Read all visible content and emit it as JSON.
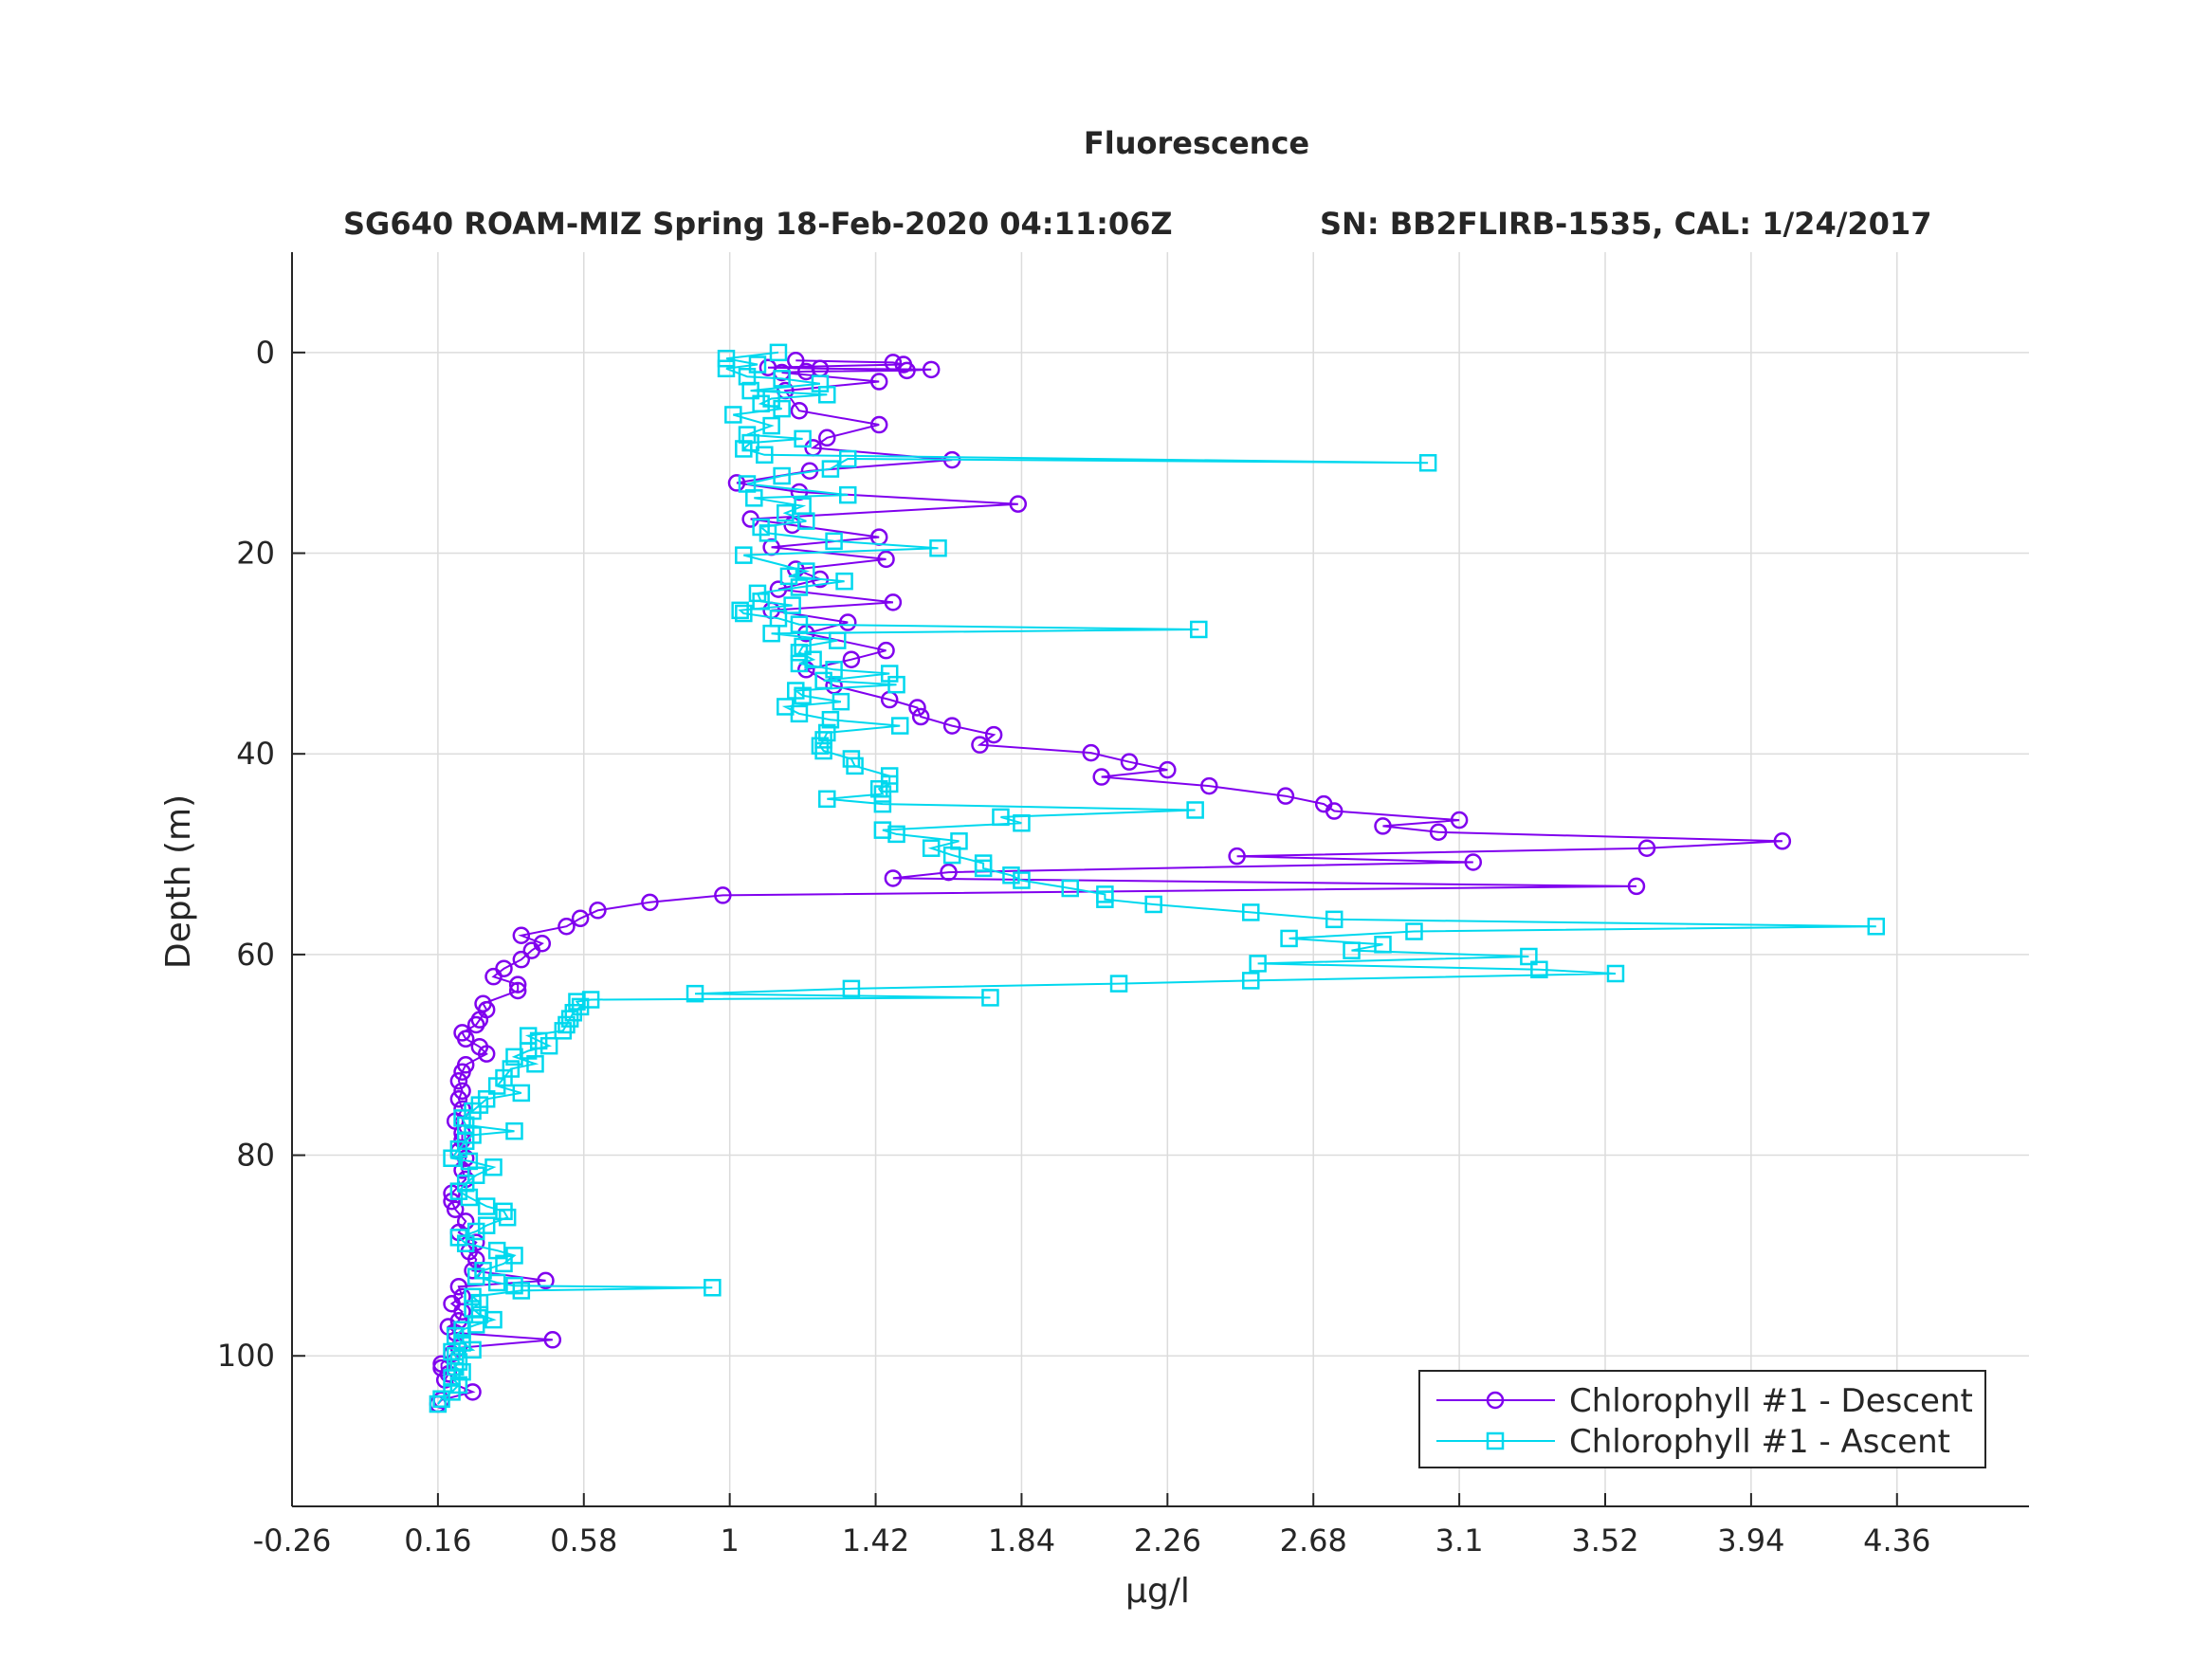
{
  "chart_data": {
    "type": "line",
    "title": "Fluorescence",
    "subtitle_left": "SG640 ROAM-MIZ Spring 18-Feb-2020 04:11:06Z",
    "subtitle_right": "SN: BB2FLIRB-1535, CAL: 1/24/2017",
    "xlabel": "μg/l",
    "ylabel": "Depth (m)",
    "xlim": [
      -0.26,
      4.74
    ],
    "ylim": [
      115,
      -10
    ],
    "y_reversed": true,
    "grid": true,
    "legend_position": "bottom-right",
    "xticks": [
      -0.26,
      0.16,
      0.58,
      1,
      1.42,
      1.84,
      2.26,
      2.68,
      3.1,
      3.52,
      3.94,
      4.36
    ],
    "xtick_labels": [
      "-0.26",
      "0.16",
      "0.58",
      "1",
      "1.42",
      "1.84",
      "2.26",
      "2.68",
      "3.1",
      "3.52",
      "3.94",
      "4.36"
    ],
    "yticks": [
      0,
      20,
      40,
      60,
      80,
      100
    ],
    "ytick_labels": [
      "0",
      "20",
      "40",
      "60",
      "80",
      "100"
    ],
    "series": [
      {
        "name": "Chlorophyll #1 - Descent",
        "color": "#8000ee",
        "marker": "circle",
        "points": [
          [
            1.19,
            0.8
          ],
          [
            1.47,
            1.0
          ],
          [
            1.5,
            1.2
          ],
          [
            1.11,
            1.5
          ],
          [
            1.26,
            1.6
          ],
          [
            1.58,
            1.7
          ],
          [
            1.51,
            1.8
          ],
          [
            1.22,
            1.9
          ],
          [
            1.15,
            2.0
          ],
          [
            1.43,
            2.9
          ],
          [
            1.16,
            3.8
          ],
          [
            1.2,
            5.8
          ],
          [
            1.43,
            7.2
          ],
          [
            1.28,
            8.5
          ],
          [
            1.24,
            9.5
          ],
          [
            1.64,
            10.7
          ],
          [
            1.23,
            11.8
          ],
          [
            1.02,
            13.0
          ],
          [
            1.2,
            13.9
          ],
          [
            1.83,
            15.1
          ],
          [
            1.06,
            16.6
          ],
          [
            1.18,
            17.2
          ],
          [
            1.43,
            18.4
          ],
          [
            1.12,
            19.4
          ],
          [
            1.45,
            20.6
          ],
          [
            1.19,
            21.6
          ],
          [
            1.26,
            22.6
          ],
          [
            1.14,
            23.6
          ],
          [
            1.47,
            24.9
          ],
          [
            1.12,
            25.7
          ],
          [
            1.34,
            26.9
          ],
          [
            1.22,
            28.0
          ],
          [
            1.45,
            29.7
          ],
          [
            1.35,
            30.6
          ],
          [
            1.22,
            31.6
          ],
          [
            1.3,
            33.2
          ],
          [
            1.46,
            34.6
          ],
          [
            1.54,
            35.4
          ],
          [
            1.55,
            36.3
          ],
          [
            1.64,
            37.2
          ],
          [
            1.76,
            38.1
          ],
          [
            1.72,
            39.1
          ],
          [
            2.04,
            39.9
          ],
          [
            2.15,
            40.8
          ],
          [
            2.26,
            41.6
          ],
          [
            2.07,
            42.3
          ],
          [
            2.38,
            43.2
          ],
          [
            2.6,
            44.2
          ],
          [
            2.71,
            45.0
          ],
          [
            2.74,
            45.7
          ],
          [
            3.1,
            46.6
          ],
          [
            2.88,
            47.2
          ],
          [
            3.04,
            47.8
          ],
          [
            4.03,
            48.7
          ],
          [
            3.64,
            49.4
          ],
          [
            2.46,
            50.2
          ],
          [
            3.14,
            50.8
          ],
          [
            1.63,
            51.8
          ],
          [
            1.47,
            52.4
          ],
          [
            3.61,
            53.2
          ],
          [
            0.98,
            54.1
          ],
          [
            0.77,
            54.8
          ],
          [
            0.62,
            55.6
          ],
          [
            0.57,
            56.4
          ],
          [
            0.53,
            57.2
          ],
          [
            0.4,
            58.1
          ],
          [
            0.46,
            58.9
          ],
          [
            0.43,
            59.6
          ],
          [
            0.4,
            60.5
          ],
          [
            0.35,
            61.4
          ],
          [
            0.32,
            62.2
          ],
          [
            0.39,
            63.0
          ],
          [
            0.39,
            63.6
          ],
          [
            0.29,
            64.9
          ],
          [
            0.3,
            65.5
          ],
          [
            0.28,
            66.5
          ],
          [
            0.27,
            67.0
          ],
          [
            0.23,
            67.8
          ],
          [
            0.24,
            68.4
          ],
          [
            0.28,
            69.2
          ],
          [
            0.3,
            69.9
          ],
          [
            0.24,
            71.0
          ],
          [
            0.23,
            71.7
          ],
          [
            0.22,
            72.6
          ],
          [
            0.23,
            73.6
          ],
          [
            0.22,
            74.4
          ],
          [
            0.23,
            75.4
          ],
          [
            0.21,
            76.6
          ],
          [
            0.23,
            77.8
          ],
          [
            0.23,
            78.5
          ],
          [
            0.22,
            79.6
          ],
          [
            0.24,
            80.3
          ],
          [
            0.23,
            81.5
          ],
          [
            0.24,
            82.4
          ],
          [
            0.2,
            83.8
          ],
          [
            0.2,
            84.6
          ],
          [
            0.21,
            85.4
          ],
          [
            0.24,
            86.6
          ],
          [
            0.22,
            87.7
          ],
          [
            0.27,
            88.7
          ],
          [
            0.25,
            89.6
          ],
          [
            0.27,
            90.4
          ],
          [
            0.26,
            91.5
          ],
          [
            0.47,
            92.5
          ],
          [
            0.22,
            93.1
          ],
          [
            0.23,
            94.1
          ],
          [
            0.2,
            94.8
          ],
          [
            0.23,
            95.6
          ],
          [
            0.22,
            96.5
          ],
          [
            0.19,
            97.1
          ],
          [
            0.21,
            97.7
          ],
          [
            0.49,
            98.4
          ],
          [
            0.22,
            99.2
          ],
          [
            0.2,
            99.8
          ],
          [
            0.17,
            100.8
          ],
          [
            0.17,
            101.2
          ],
          [
            0.19,
            101.8
          ],
          [
            0.18,
            102.4
          ],
          [
            0.26,
            103.6
          ],
          [
            0.17,
            104.4
          ],
          [
            0.16,
            104.8
          ]
        ]
      },
      {
        "name": "Chlorophyll #1 - Ascent",
        "color": "#00d8ee",
        "marker": "square",
        "points": [
          [
            0.16,
            104.8
          ],
          [
            0.17,
            104.3
          ],
          [
            0.2,
            103.6
          ],
          [
            0.22,
            102.9
          ],
          [
            0.2,
            102.2
          ],
          [
            0.23,
            101.6
          ],
          [
            0.21,
            101.1
          ],
          [
            0.22,
            100.6
          ],
          [
            0.21,
            100.0
          ],
          [
            0.2,
            99.6
          ],
          [
            0.26,
            99.4
          ],
          [
            0.23,
            98.7
          ],
          [
            0.21,
            98.0
          ],
          [
            0.23,
            97.4
          ],
          [
            0.27,
            96.9
          ],
          [
            0.32,
            96.4
          ],
          [
            0.28,
            95.9
          ],
          [
            0.26,
            95.3
          ],
          [
            0.28,
            94.7
          ],
          [
            0.26,
            94.1
          ],
          [
            0.4,
            93.5
          ],
          [
            0.95,
            93.2
          ],
          [
            0.38,
            93.0
          ],
          [
            0.33,
            92.7
          ],
          [
            0.27,
            92.1
          ],
          [
            0.29,
            91.5
          ],
          [
            0.35,
            90.8
          ],
          [
            0.38,
            90.0
          ],
          [
            0.33,
            89.5
          ],
          [
            0.24,
            88.8
          ],
          [
            0.22,
            88.2
          ],
          [
            0.27,
            87.6
          ],
          [
            0.3,
            87.0
          ],
          [
            0.36,
            86.2
          ],
          [
            0.35,
            85.6
          ],
          [
            0.3,
            85.1
          ],
          [
            0.25,
            84.2
          ],
          [
            0.22,
            83.6
          ],
          [
            0.24,
            82.8
          ],
          [
            0.27,
            82.0
          ],
          [
            0.32,
            81.2
          ],
          [
            0.25,
            80.6
          ],
          [
            0.2,
            80.3
          ],
          [
            0.22,
            79.4
          ],
          [
            0.24,
            78.6
          ],
          [
            0.26,
            78.0
          ],
          [
            0.38,
            77.6
          ],
          [
            0.24,
            77.0
          ],
          [
            0.23,
            76.3
          ],
          [
            0.26,
            75.6
          ],
          [
            0.28,
            75.0
          ],
          [
            0.3,
            74.4
          ],
          [
            0.4,
            73.8
          ],
          [
            0.33,
            73.1
          ],
          [
            0.35,
            72.3
          ],
          [
            0.37,
            71.4
          ],
          [
            0.44,
            70.9
          ],
          [
            0.38,
            70.2
          ],
          [
            0.42,
            69.6
          ],
          [
            0.48,
            69.1
          ],
          [
            0.45,
            68.6
          ],
          [
            0.42,
            68.1
          ],
          [
            0.52,
            67.6
          ],
          [
            0.53,
            67.0
          ],
          [
            0.54,
            66.4
          ],
          [
            0.55,
            65.8
          ],
          [
            0.57,
            65.2
          ],
          [
            0.56,
            64.7
          ],
          [
            0.6,
            64.5
          ],
          [
            1.75,
            64.3
          ],
          [
            0.9,
            63.9
          ],
          [
            1.35,
            63.4
          ],
          [
            2.12,
            62.9
          ],
          [
            2.5,
            62.6
          ],
          [
            3.55,
            61.9
          ],
          [
            3.33,
            61.5
          ],
          [
            2.52,
            60.9
          ],
          [
            3.3,
            60.2
          ],
          [
            2.79,
            59.6
          ],
          [
            2.88,
            59.0
          ],
          [
            2.61,
            58.4
          ],
          [
            2.97,
            57.7
          ],
          [
            4.3,
            57.2
          ],
          [
            2.74,
            56.5
          ],
          [
            2.5,
            55.8
          ],
          [
            2.22,
            55.0
          ],
          [
            2.08,
            54.5
          ],
          [
            2.08,
            54.0
          ],
          [
            1.98,
            53.4
          ],
          [
            1.84,
            52.6
          ],
          [
            1.81,
            52.1
          ],
          [
            1.73,
            51.4
          ],
          [
            1.73,
            50.9
          ],
          [
            1.64,
            50.1
          ],
          [
            1.58,
            49.4
          ],
          [
            1.66,
            48.7
          ],
          [
            1.48,
            48.0
          ],
          [
            1.44,
            47.6
          ],
          [
            1.84,
            46.9
          ],
          [
            1.78,
            46.3
          ],
          [
            2.34,
            45.6
          ],
          [
            1.44,
            45.0
          ],
          [
            1.28,
            44.5
          ],
          [
            1.44,
            44.0
          ],
          [
            1.43,
            43.5
          ],
          [
            1.46,
            43.0
          ],
          [
            1.46,
            42.2
          ],
          [
            1.36,
            41.2
          ],
          [
            1.35,
            40.5
          ],
          [
            1.27,
            39.7
          ],
          [
            1.26,
            39.2
          ],
          [
            1.27,
            38.6
          ],
          [
            1.28,
            37.9
          ],
          [
            1.49,
            37.2
          ],
          [
            1.29,
            36.6
          ],
          [
            1.2,
            36.0
          ],
          [
            1.16,
            35.3
          ],
          [
            1.32,
            34.8
          ],
          [
            1.21,
            34.2
          ],
          [
            1.19,
            33.7
          ],
          [
            1.48,
            33.1
          ],
          [
            1.27,
            32.7
          ],
          [
            1.46,
            32.0
          ],
          [
            1.3,
            31.6
          ],
          [
            1.2,
            31.0
          ],
          [
            1.24,
            30.6
          ],
          [
            1.2,
            29.9
          ],
          [
            1.21,
            29.3
          ],
          [
            1.31,
            28.7
          ],
          [
            1.12,
            28.0
          ],
          [
            2.35,
            27.6
          ],
          [
            1.2,
            27.1
          ],
          [
            1.14,
            26.5
          ],
          [
            1.04,
            26.0
          ],
          [
            1.03,
            25.7
          ],
          [
            1.18,
            25.2
          ],
          [
            1.09,
            24.8
          ],
          [
            1.08,
            24.0
          ],
          [
            1.2,
            23.4
          ],
          [
            1.33,
            22.8
          ],
          [
            1.17,
            22.3
          ],
          [
            1.22,
            21.8
          ],
          [
            1.04,
            20.2
          ],
          [
            1.6,
            19.5
          ],
          [
            1.3,
            18.8
          ],
          [
            1.11,
            18.0
          ],
          [
            1.09,
            17.4
          ],
          [
            1.22,
            16.8
          ],
          [
            1.16,
            16.0
          ],
          [
            1.21,
            15.3
          ],
          [
            1.07,
            14.5
          ],
          [
            1.34,
            14.2
          ],
          [
            1.05,
            13.1
          ],
          [
            1.15,
            12.3
          ],
          [
            1.29,
            11.6
          ],
          [
            1.34,
            10.6
          ],
          [
            3.01,
            11.0
          ],
          [
            1.1,
            10.2
          ],
          [
            1.04,
            9.6
          ],
          [
            1.06,
            9.0
          ],
          [
            1.21,
            8.6
          ],
          [
            1.05,
            8.2
          ],
          [
            1.12,
            7.3
          ],
          [
            1.01,
            6.2
          ],
          [
            1.15,
            5.6
          ],
          [
            1.09,
            5.1
          ],
          [
            1.12,
            4.6
          ],
          [
            1.28,
            4.2
          ],
          [
            1.06,
            3.8
          ],
          [
            1.26,
            3.1
          ],
          [
            1.15,
            2.6
          ],
          [
            1.05,
            2.4
          ],
          [
            0.99,
            1.6
          ],
          [
            1.08,
            1.2
          ],
          [
            0.99,
            0.6
          ],
          [
            1.14,
            0.0
          ]
        ]
      }
    ]
  }
}
